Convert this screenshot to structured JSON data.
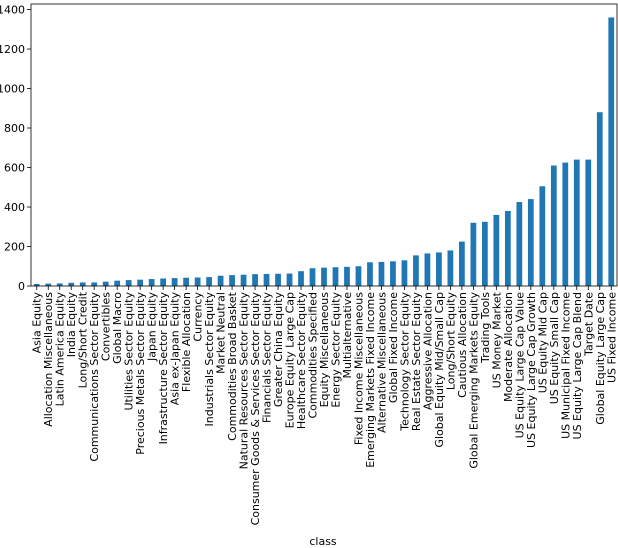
{
  "chart_data": {
    "type": "bar",
    "x_label": "class",
    "categories": [
      "Asia Equity",
      "Allocation Miscellaneous",
      "Latin America Equity",
      "India Equity",
      "Long/Short Credit",
      "Communications Sector Equity",
      "Convertibles",
      "Global Macro",
      "Utilities Sector Equity",
      "Precious Metals Sector Equity",
      "Japan Equity",
      "Infrastructure Sector Equity",
      "Asia ex-Japan Equity",
      "Flexible Allocation",
      "Currency",
      "Industrials Sector Equity",
      "Market Neutral",
      "Commodities Broad Basket",
      "Natural Resources Sector Equity",
      "Consumer Goods & Services Sector Equity",
      "Financials Sector Equity",
      "Greater China Equity",
      "Europe Equity Large Cap",
      "Healthcare Sector Equity",
      "Commodities Specified",
      "Equity Miscellaneous",
      "Energy Sector Equity",
      "Multialternative",
      "Fixed Income Miscellaneous",
      "Emerging Markets Fixed Income",
      "Alternative Miscellaneous",
      "Global Fixed Income",
      "Technology Sector Equity",
      "Real Estate Sector Equity",
      "Aggressive Allocation",
      "Global Equity Mid/Small Cap",
      "Long/Short Equity",
      "Cautious Allocation",
      "Global Emerging Markets Equity",
      "Trading Tools",
      "US Money Market",
      "Moderate Allocation",
      "US Equity Large Cap Value",
      "US Equity Large Cap Growth",
      "US Equity Mid Cap",
      "US Equity Small Cap",
      "US Municipal Fixed Income",
      "US Equity Large Cap Blend",
      "Target Date",
      "Global Equity Large Cap",
      "US Fixed Income"
    ],
    "values": [
      10,
      12,
      13,
      16,
      18,
      18,
      22,
      27,
      30,
      32,
      35,
      38,
      40,
      42,
      43,
      45,
      52,
      55,
      57,
      60,
      61,
      62,
      63,
      75,
      90,
      93,
      95,
      97,
      100,
      120,
      122,
      125,
      130,
      155,
      165,
      170,
      180,
      225,
      320,
      325,
      360,
      380,
      425,
      440,
      505,
      610,
      625,
      640,
      640,
      880,
      1360
    ],
    "color": "#1f77b4",
    "ylim": [
      0,
      1428
    ],
    "yticks": [
      0,
      200,
      400,
      600,
      800,
      1000,
      1200,
      1400
    ],
    "grid": false
  }
}
